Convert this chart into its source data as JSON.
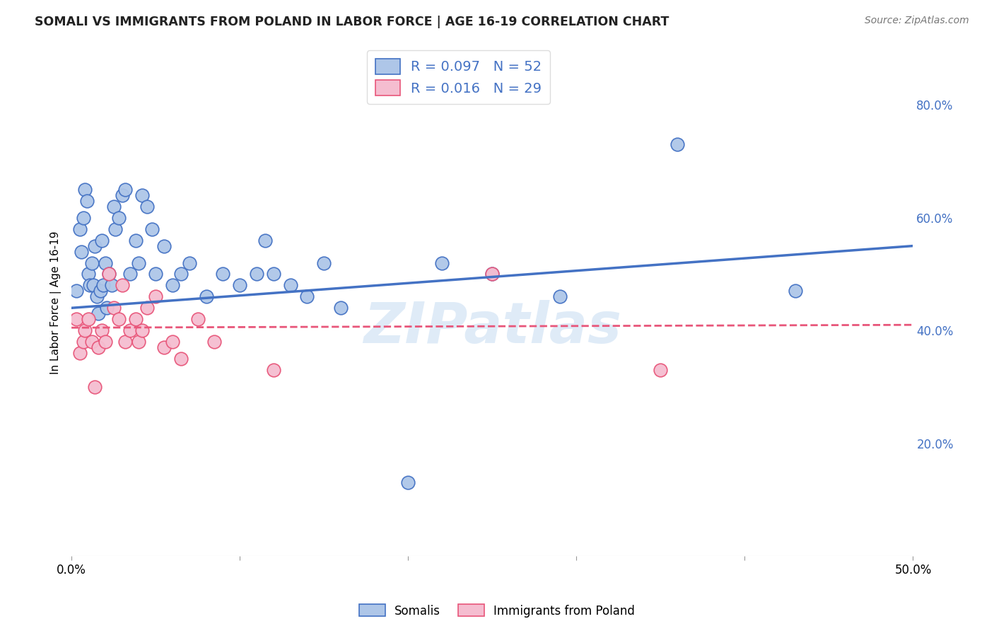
{
  "title": "SOMALI VS IMMIGRANTS FROM POLAND IN LABOR FORCE | AGE 16-19 CORRELATION CHART",
  "source": "Source: ZipAtlas.com",
  "ylabel": "In Labor Force | Age 16-19",
  "xmin": 0.0,
  "xmax": 0.5,
  "ymin": 0.0,
  "ymax": 0.9,
  "y_ticks_right": [
    0.2,
    0.4,
    0.6,
    0.8
  ],
  "y_tick_labels_right": [
    "20.0%",
    "40.0%",
    "60.0%",
    "80.0%"
  ],
  "somali_R": 0.097,
  "somali_N": 52,
  "poland_R": 0.016,
  "poland_N": 29,
  "somali_color": "#aec6e8",
  "somali_line_color": "#4472c4",
  "poland_color": "#f5bdd0",
  "poland_line_color": "#e8567a",
  "watermark_text": "ZIPatlas",
  "watermark_color": "#b8d4ef",
  "background_color": "#ffffff",
  "grid_color": "#cccccc",
  "somali_x": [
    0.003,
    0.005,
    0.006,
    0.007,
    0.008,
    0.009,
    0.01,
    0.011,
    0.012,
    0.013,
    0.014,
    0.015,
    0.016,
    0.017,
    0.018,
    0.019,
    0.02,
    0.021,
    0.022,
    0.024,
    0.025,
    0.026,
    0.028,
    0.03,
    0.032,
    0.035,
    0.038,
    0.04,
    0.042,
    0.045,
    0.048,
    0.05,
    0.055,
    0.06,
    0.065,
    0.07,
    0.08,
    0.09,
    0.1,
    0.11,
    0.115,
    0.12,
    0.13,
    0.14,
    0.15,
    0.16,
    0.2,
    0.22,
    0.25,
    0.29,
    0.36,
    0.43
  ],
  "somali_y": [
    0.47,
    0.58,
    0.54,
    0.6,
    0.65,
    0.63,
    0.5,
    0.48,
    0.52,
    0.48,
    0.55,
    0.46,
    0.43,
    0.47,
    0.56,
    0.48,
    0.52,
    0.44,
    0.5,
    0.48,
    0.62,
    0.58,
    0.6,
    0.64,
    0.65,
    0.5,
    0.56,
    0.52,
    0.64,
    0.62,
    0.58,
    0.5,
    0.55,
    0.48,
    0.5,
    0.52,
    0.46,
    0.5,
    0.48,
    0.5,
    0.56,
    0.5,
    0.48,
    0.46,
    0.52,
    0.44,
    0.13,
    0.52,
    0.5,
    0.46,
    0.73,
    0.47
  ],
  "poland_x": [
    0.003,
    0.005,
    0.007,
    0.008,
    0.01,
    0.012,
    0.014,
    0.016,
    0.018,
    0.02,
    0.022,
    0.025,
    0.028,
    0.03,
    0.032,
    0.035,
    0.038,
    0.04,
    0.042,
    0.045,
    0.05,
    0.055,
    0.06,
    0.065,
    0.075,
    0.085,
    0.12,
    0.25,
    0.35
  ],
  "poland_y": [
    0.42,
    0.36,
    0.38,
    0.4,
    0.42,
    0.38,
    0.3,
    0.37,
    0.4,
    0.38,
    0.5,
    0.44,
    0.42,
    0.48,
    0.38,
    0.4,
    0.42,
    0.38,
    0.4,
    0.44,
    0.46,
    0.37,
    0.38,
    0.35,
    0.42,
    0.38,
    0.33,
    0.5,
    0.33
  ],
  "somali_trend_x0": 0.0,
  "somali_trend_y0": 0.44,
  "somali_trend_x1": 0.5,
  "somali_trend_y1": 0.55,
  "poland_trend_x0": 0.0,
  "poland_trend_y0": 0.405,
  "poland_trend_x1": 0.5,
  "poland_trend_y1": 0.41
}
